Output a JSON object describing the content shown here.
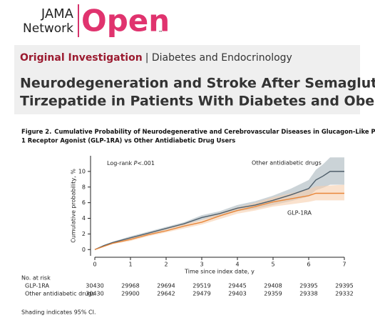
{
  "header": {
    "logo_top": "JAMA",
    "logo_bottom": "Network",
    "logo_open": "Open",
    "logo_tm": "™"
  },
  "article": {
    "kicker_type": "Original Investigation",
    "kicker_topic": "| Diabetes and Endocrinology",
    "title_lines": [
      "Neurodegeneration and Stroke After Semaglutide and",
      "Tirzepatide in Patients With Diabetes and Obesity"
    ]
  },
  "figure": {
    "label": "Figure 2.",
    "caption_lines": [
      "Cumulative Probability of Neurodegenerative and Cerebrovascular Diseases in Glucagon-Like Peptide",
      "1 Receptor Agonist (GLP-1RA) vs Other Antidiabetic Drug Users"
    ],
    "footnote": "Shading indicates 95% CI."
  },
  "chart_data": {
    "type": "line",
    "annotation": [
      "Log-rank ",
      "P",
      "<.001"
    ],
    "x_label": "Time since index date, y",
    "y_label": "Cumulative probability, %",
    "xlim": [
      0,
      7
    ],
    "xticks": [
      0,
      1,
      2,
      3,
      4,
      5,
      6,
      7
    ],
    "ylim": [
      -0.8,
      12
    ],
    "yticks": [
      0,
      2,
      4,
      6,
      8,
      10
    ],
    "series": [
      {
        "name": "Other antidiabetic drugs",
        "color": "#4f5f6b",
        "ci_color": "#a9b5bd",
        "x": [
          0,
          0.25,
          0.5,
          1,
          1.5,
          2,
          2.5,
          3,
          3.5,
          4,
          4.5,
          5,
          5.5,
          6,
          6.2,
          6.4,
          6.6,
          7
        ],
        "values": [
          0,
          0.5,
          0.9,
          1.5,
          2.1,
          2.7,
          3.3,
          4.1,
          4.6,
          5.3,
          5.7,
          6.3,
          7,
          7.8,
          8.9,
          9.4,
          10,
          10
        ],
        "lower": [
          0,
          0.4,
          0.8,
          1.3,
          1.9,
          2.5,
          3.1,
          3.8,
          4.3,
          4.9,
          5.2,
          5.7,
          6.2,
          6.8,
          7.6,
          7.9,
          8.3,
          8.3
        ],
        "upper": [
          0,
          0.6,
          1,
          1.7,
          2.3,
          2.9,
          3.5,
          4.4,
          4.9,
          5.7,
          6.2,
          6.9,
          7.8,
          8.9,
          10.2,
          10.9,
          11.8,
          11.8
        ]
      },
      {
        "name": "GLP-1RA",
        "color": "#e8873a",
        "ci_color": "#f6cfae",
        "x": [
          0,
          0.5,
          1,
          1.5,
          2,
          2.5,
          3,
          3.5,
          4,
          4.5,
          5,
          5.5,
          6,
          6.2,
          7
        ],
        "values": [
          0,
          0.8,
          1.3,
          1.9,
          2.4,
          3,
          3.5,
          4.3,
          5,
          5.5,
          6.1,
          6.5,
          6.9,
          7.2,
          7.2
        ],
        "lower": [
          0,
          0.7,
          1.1,
          1.7,
          2.2,
          2.7,
          3.2,
          3.9,
          4.6,
          5,
          5.5,
          5.8,
          6.1,
          6.3,
          6.3
        ],
        "upper": [
          0,
          0.9,
          1.5,
          2.1,
          2.6,
          3.3,
          3.8,
          4.7,
          5.4,
          6,
          6.7,
          7.2,
          7.7,
          8.1,
          8.3
        ]
      }
    ],
    "at_risk": {
      "title": "No. at risk",
      "rows": [
        {
          "name": "GLP-1RA",
          "values": [
            30430,
            29968,
            29694,
            29519,
            29445,
            29408,
            29395,
            29395
          ]
        },
        {
          "name": "Other antidiabetic drugs",
          "values": [
            30430,
            29900,
            29642,
            29479,
            29403,
            29359,
            29338,
            29332
          ]
        }
      ]
    }
  }
}
